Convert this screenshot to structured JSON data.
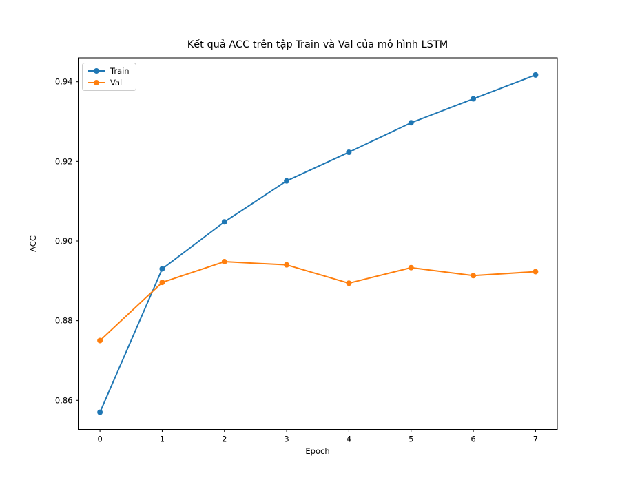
{
  "chart_data": {
    "type": "line",
    "title": "Kết quả ACC trên tập Train và Val của mô hình LSTM",
    "xlabel": "Epoch",
    "ylabel": "ACC",
    "x": [
      0,
      1,
      2,
      3,
      4,
      5,
      6,
      7
    ],
    "series": [
      {
        "name": "Train",
        "color": "#1f77b4",
        "marker": "circle",
        "values": [
          0.857,
          0.893,
          0.9048,
          0.9151,
          0.9223,
          0.9297,
          0.9357,
          0.9417
        ]
      },
      {
        "name": "Val",
        "color": "#ff7f0e",
        "marker": "circle",
        "values": [
          0.875,
          0.8896,
          0.8948,
          0.894,
          0.8894,
          0.8933,
          0.8913,
          0.8923
        ]
      }
    ],
    "x_ticks": [
      0,
      1,
      2,
      3,
      4,
      5,
      6,
      7
    ],
    "y_ticks": [
      0.86,
      0.88,
      0.9,
      0.92,
      0.94
    ],
    "xlim": [
      -0.35,
      7.35
    ],
    "ylim": [
      0.8527,
      0.946
    ],
    "grid": false,
    "legend_position": "upper left",
    "axis_color": "#000000",
    "background_color": "#ffffff",
    "line_width": 2,
    "marker_radius": 4
  }
}
